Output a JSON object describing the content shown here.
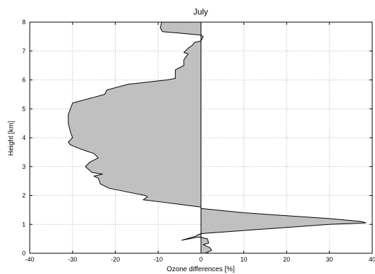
{
  "chart_data": {
    "type": "area",
    "title": "July",
    "xlabel": "Ozone differences [%]",
    "ylabel": "Height [km]",
    "xlim": [
      -40,
      40
    ],
    "ylim": [
      0,
      8
    ],
    "xticks": [
      -40,
      -30,
      -20,
      -10,
      0,
      10,
      20,
      30,
      40
    ],
    "yticks": [
      0,
      1,
      2,
      3,
      4,
      5,
      6,
      7,
      8
    ],
    "grid": true,
    "colors": {
      "fill": "#c0c0c0",
      "line": "#000000",
      "grid": "#999999"
    },
    "profile": {
      "x": [
        1,
        2.5,
        2,
        0.5,
        1.8,
        1.5,
        0,
        -1,
        -4.5,
        -1,
        -1,
        -0.5,
        0,
        6.5,
        30,
        38.5,
        37.5,
        30,
        10,
        0,
        0,
        0,
        -8,
        -13.5,
        -12.5,
        -13,
        -16.5,
        -21.5,
        -23.5,
        -24,
        -25,
        -23,
        -25.5,
        -27,
        -26,
        -24,
        -25,
        -28,
        -30.5,
        -31,
        -30,
        -30.5,
        -31,
        -31,
        -30.5,
        -30,
        -25,
        -22.5,
        -22,
        -17,
        -11,
        -8,
        -6,
        -6,
        -4,
        -4,
        -3.5,
        -3,
        -4,
        -3,
        -2,
        -1.5,
        0,
        0.5,
        0,
        -5,
        -9,
        -9.5,
        -9.2
      ],
      "y": [
        0,
        0.1,
        0.2,
        0.3,
        0.35,
        0.5,
        0.55,
        0.55,
        0.45,
        0.6,
        0.62,
        0.65,
        0.68,
        0.75,
        1.0,
        1.05,
        1.1,
        1.2,
        1.4,
        1.55,
        1.55,
        1.6,
        1.75,
        1.85,
        1.95,
        2.0,
        2.1,
        2.25,
        2.4,
        2.6,
        2.67,
        2.74,
        2.8,
        3.0,
        3.15,
        3.3,
        3.45,
        3.6,
        3.75,
        3.85,
        4.0,
        4.2,
        4.5,
        4.8,
        5.0,
        5.2,
        5.4,
        5.5,
        5.65,
        5.85,
        5.95,
        6.0,
        6.05,
        6.35,
        6.5,
        6.7,
        6.8,
        6.9,
        6.95,
        7.1,
        7.2,
        7.3,
        7.35,
        7.5,
        7.55,
        7.62,
        7.67,
        7.8,
        8.0
      ]
    }
  }
}
